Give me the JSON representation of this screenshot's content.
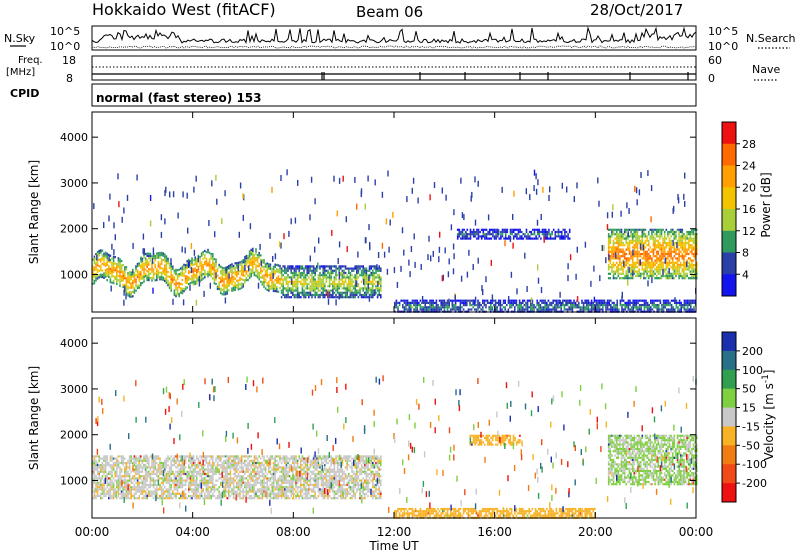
{
  "header": {
    "station": "Hokkaido West (fitACF)",
    "beam": "Beam 06",
    "date": "28/Oct/2017"
  },
  "noise_panel": {
    "left_label": "N.Sky",
    "right_label": "N.Search",
    "left_ticks": [
      "10^5",
      "10^0"
    ],
    "right_ticks": [
      "10^5",
      "10^0"
    ]
  },
  "freq_panel": {
    "left_label_1": "Freq.",
    "left_label_2": "[MHz]",
    "right_label": "Nave",
    "left_ticks": [
      "18",
      "8"
    ],
    "right_ticks": [
      "60",
      "0"
    ]
  },
  "cpid_panel": {
    "label": "CPID",
    "text": "normal (fast stereo) 153"
  },
  "x_axis": {
    "label": "Time UT",
    "ticks": [
      "00:00",
      "04:00",
      "08:00",
      "12:00",
      "16:00",
      "20:00",
      "00:00"
    ]
  },
  "power_colorbar": {
    "label": "Power [dB]",
    "ticks": [
      "28",
      "24",
      "20",
      "16",
      "12",
      "8",
      "4"
    ],
    "colors": [
      "#ee1111",
      "#ff6a00",
      "#ffa000",
      "#f2c400",
      "#a8cf3a",
      "#2f9a5e",
      "#2b3fa8",
      "#1414ee"
    ]
  },
  "velocity_colorbar": {
    "label_main": "Velocity [m s",
    "label_sup": "-1",
    "label_end": "]",
    "ticks": [
      "200",
      "100",
      "50",
      "15",
      "-15",
      "-50",
      "-100",
      "-200"
    ],
    "colors": [
      "#1a2fae",
      "#2a6f88",
      "#30a050",
      "#7ed040",
      "#c8c8c8",
      "#f7b226",
      "#f07c14",
      "#f04a18",
      "#ee1111"
    ]
  },
  "chart_data": [
    {
      "type": "heatmap",
      "title": "",
      "ylabel": "Slant Range [km]",
      "xlabel": "",
      "x_range_hours_ut": [
        0,
        24
      ],
      "ylim": [
        180,
        4550
      ],
      "yticks": [
        1000,
        2000,
        3000,
        4000
      ],
      "ytick_labels": [
        "1000",
        "2000",
        "3000",
        "4000"
      ],
      "variable": "Power [dB]",
      "colorscale_range": [
        0,
        32
      ],
      "features": [
        {
          "time_ut": [
            0,
            7.5
          ],
          "range_km": [
            700,
            1550
          ],
          "power_db": 22,
          "note": "oscillating band"
        },
        {
          "time_ut": [
            7.5,
            11.5
          ],
          "range_km": [
            500,
            1200
          ],
          "power_db": 16
        },
        {
          "time_ut": [
            12,
            24
          ],
          "range_km": [
            180,
            450
          ],
          "power_db": 10
        },
        {
          "time_ut": [
            14.5,
            19
          ],
          "range_km": [
            1800,
            2000
          ],
          "power_db": 8
        },
        {
          "time_ut": [
            20.5,
            24
          ],
          "range_km": [
            900,
            2000
          ],
          "power_db": 24
        }
      ]
    },
    {
      "type": "heatmap",
      "title": "",
      "ylabel": "Slant Range [km]",
      "xlabel": "Time UT",
      "x_range_hours_ut": [
        0,
        24
      ],
      "ylim": [
        180,
        4550
      ],
      "yticks": [
        1000,
        2000,
        3000,
        4000
      ],
      "ytick_labels": [
        "1000",
        "2000",
        "3000",
        "4000"
      ],
      "variable": "Velocity [m s-1]",
      "colorscale_range": [
        -250,
        250
      ],
      "features": [
        {
          "time_ut": [
            0,
            11.5
          ],
          "range_km": [
            600,
            1550
          ],
          "velocity_ms": 0
        },
        {
          "time_ut": [
            12,
            20
          ],
          "range_km": [
            180,
            400
          ],
          "velocity_ms": -40
        },
        {
          "time_ut": [
            15,
            17
          ],
          "range_km": [
            1800,
            2000
          ],
          "velocity_ms": -40
        },
        {
          "time_ut": [
            20.5,
            24
          ],
          "range_km": [
            900,
            2000
          ],
          "velocity_ms": 20
        }
      ]
    }
  ]
}
